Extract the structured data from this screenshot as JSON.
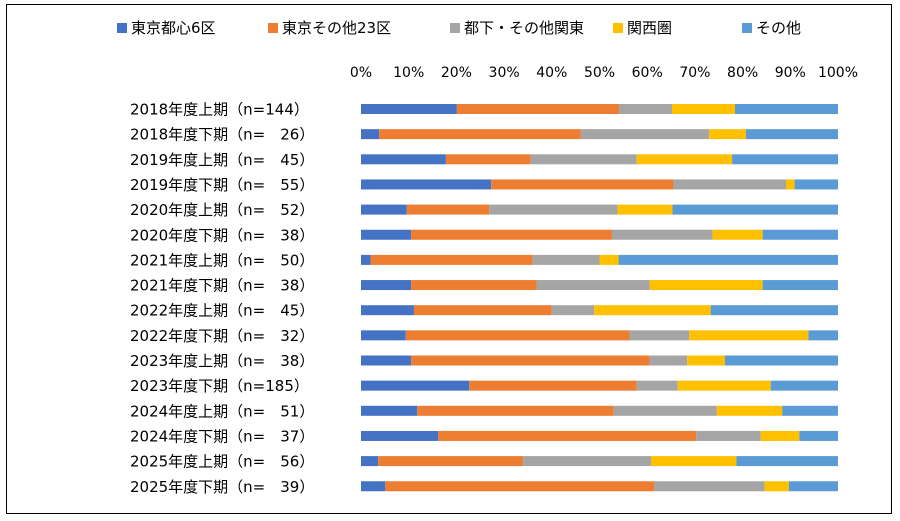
{
  "chart_data": {
    "type": "bar",
    "orientation": "horizontal",
    "stacked": "percent",
    "title": "",
    "xlabel": "",
    "ylabel": "",
    "xlim": [
      0,
      100
    ],
    "x_ticks": [
      "0%",
      "10%",
      "20%",
      "30%",
      "40%",
      "50%",
      "60%",
      "70%",
      "80%",
      "90%",
      "100%"
    ],
    "legend_position": "top",
    "grid": false,
    "categories": [
      "2018年度上期（n=144）",
      "2018年度下期（n=　26）",
      "2019年度上期（n=　45）",
      "2019年度下期（n=　55）",
      "2020年度上期（n=　52）",
      "2020年度下期（n=　38）",
      "2021年度上期（n=　50）",
      "2021年度下期（n=　38）",
      "2022年度上期（n=　45）",
      "2022年度下期（n=　32）",
      "2023年度上期（n=　38）",
      "2023年度下期（n=185）",
      "2024年度上期（n=　51）",
      "2024年度下期（n=　37）",
      "2025年度上期（n=　56）",
      "2025年度下期（n=　39）"
    ],
    "series": [
      {
        "name": "東京都心6区",
        "color": "#4472C4",
        "values": [
          20.1,
          3.8,
          17.8,
          27.3,
          9.6,
          10.5,
          2.0,
          10.5,
          11.1,
          9.4,
          10.5,
          22.7,
          11.8,
          16.2,
          3.6,
          5.1
        ]
      },
      {
        "name": "東京その他23区",
        "color": "#ED7D31",
        "values": [
          34.0,
          42.3,
          17.8,
          38.2,
          17.3,
          42.1,
          34.0,
          26.3,
          28.9,
          46.9,
          50.0,
          35.1,
          41.2,
          54.1,
          30.4,
          56.4
        ]
      },
      {
        "name": "都下・その他関東",
        "color": "#A5A5A5",
        "values": [
          11.1,
          26.9,
          22.2,
          23.6,
          26.9,
          21.1,
          14.0,
          23.7,
          8.9,
          12.5,
          7.9,
          8.6,
          21.6,
          13.5,
          26.8,
          23.1
        ]
      },
      {
        "name": "関西圏",
        "color": "#FFC000",
        "values": [
          13.2,
          7.7,
          20.0,
          1.8,
          11.5,
          10.5,
          4.0,
          23.7,
          24.4,
          25.0,
          7.9,
          19.5,
          13.7,
          8.1,
          17.9,
          5.1
        ]
      },
      {
        "name": "その他",
        "color": "#5B9BD5",
        "values": [
          21.6,
          19.3,
          22.2,
          9.1,
          34.7,
          15.8,
          46.0,
          15.8,
          26.7,
          6.2,
          23.7,
          14.1,
          11.7,
          8.1,
          21.3,
          10.3
        ]
      }
    ]
  }
}
